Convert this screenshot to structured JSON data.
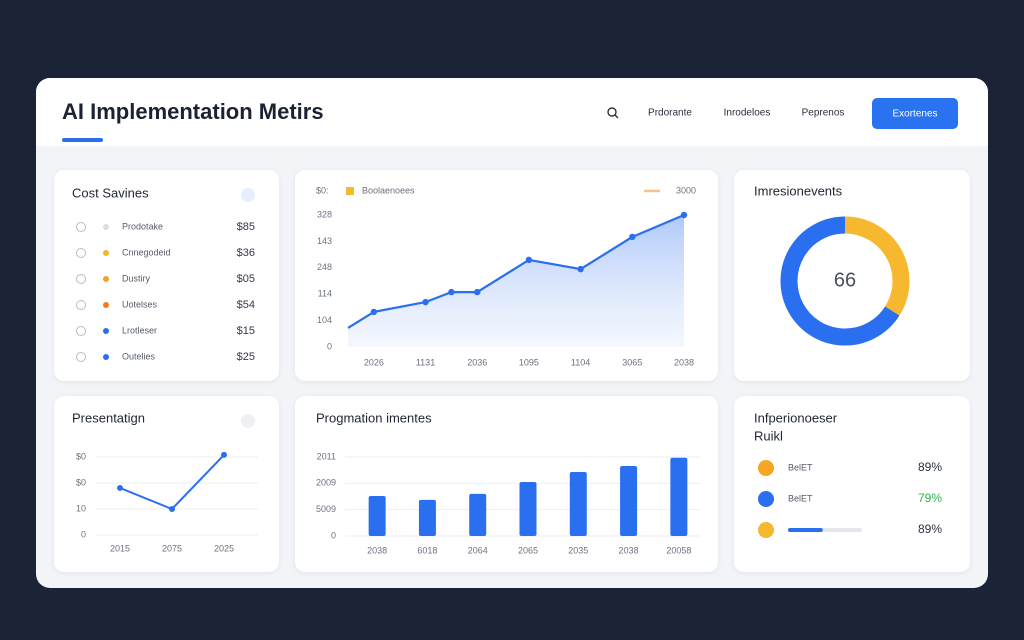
{
  "header": {
    "title": "AI Implementation Metirs",
    "nav": [
      "Prdorante",
      "Inrodeloes",
      "Peprenos"
    ],
    "button": "Exortenes"
  },
  "cost_savings": {
    "title": "Cost Savines",
    "rows": [
      {
        "name": "Prodotake",
        "color": "#e2ddd2",
        "value": "$85"
      },
      {
        "name": "Cnnegodeid",
        "color": "#f2b52c",
        "value": "$36"
      },
      {
        "name": "Dustiry",
        "color": "#f2a524",
        "value": "$05"
      },
      {
        "name": "Uotelses",
        "color": "#f07a22",
        "value": "$54"
      },
      {
        "name": "Lrotleser",
        "color": "#2a6ff0",
        "value": "$15"
      },
      {
        "name": "Outelies",
        "color": "#2a6ff0",
        "value": "$25"
      }
    ]
  },
  "chart_data": [
    {
      "type": "line",
      "corner_label": "$0:",
      "legend_color": "#f5b82e",
      "legend_extra": {
        "label": "3000",
        "color": "#f5c38a"
      },
      "x": [
        0.5,
        1,
        2,
        2.5,
        3,
        4,
        5,
        6,
        7
      ],
      "xlim": [
        0.5,
        7
      ],
      "xticks": [
        {
          "value": 1,
          "label": "2026"
        },
        {
          "value": 2,
          "label": "1131"
        },
        {
          "value": 3,
          "label": "2036"
        },
        {
          "value": 4,
          "label": "1095"
        },
        {
          "value": 5,
          "label": "1104"
        },
        {
          "value": 6,
          "label": "3065"
        },
        {
          "value": 7,
          "label": "2038"
        }
      ],
      "series": [
        {
          "name": "Boolaenoees",
          "color": "#2a6ff0",
          "values": [
            0.72,
            1.33,
            1.7,
            2.08,
            2.08,
            3.3,
            2.95,
            4.17,
            5.0
          ]
        }
      ],
      "ylim": [
        0,
        5
      ],
      "yticks": [
        0,
        {
          "value": 1,
          "label": "104"
        },
        {
          "value": 2,
          "label": "114"
        },
        {
          "value": 3,
          "label": "248"
        },
        {
          "value": 4,
          "label": "143"
        },
        {
          "value": 5,
          "label": "328"
        }
      ]
    },
    {
      "type": "pie",
      "title": "Imresionevents",
      "center_label": "66",
      "values": [
        34,
        66
      ],
      "colors": [
        "#f5b82e",
        "#2a6ff0"
      ]
    },
    {
      "type": "line",
      "title": "Presentatign",
      "categories": [
        "2015",
        "2075",
        "2025"
      ],
      "values": [
        1.81,
        1.0,
        3.08
      ],
      "color": "#2a6ff0",
      "ylim": [
        0,
        3
      ],
      "yticks": [
        0,
        {
          "value": 1,
          "label": "10"
        },
        {
          "value": 2,
          "label": "$0"
        },
        {
          "value": 3,
          "label": "$0"
        }
      ],
      "grid": true
    },
    {
      "type": "bar",
      "title": "Progmation imentes",
      "categories": [
        "2038",
        "6018",
        "2064",
        "2065",
        "2035",
        "2038",
        "20058"
      ],
      "values": [
        1.52,
        1.37,
        1.6,
        2.05,
        2.43,
        2.66,
        2.97
      ],
      "color": "#2a6ff0",
      "ylim": [
        0,
        3
      ],
      "yticks": [
        0,
        {
          "value": 1,
          "label": "5009"
        },
        {
          "value": 2,
          "label": "2009"
        },
        {
          "value": 3,
          "label": "2011"
        }
      ],
      "grid": true
    }
  ],
  "performance": {
    "title_lines": [
      "Infperionoeser",
      "Ruikl"
    ],
    "rows": [
      {
        "label": "BelET",
        "value": "89%",
        "color": "#f5a623",
        "value_color": "#2a3040"
      },
      {
        "label": "BelET",
        "value": "79%",
        "color": "#2a6ff0",
        "value_color": "#2fb54a"
      },
      {
        "value": "89%",
        "color": "#f5b82e",
        "value_color": "#2a3040"
      }
    ],
    "progress": 47
  }
}
